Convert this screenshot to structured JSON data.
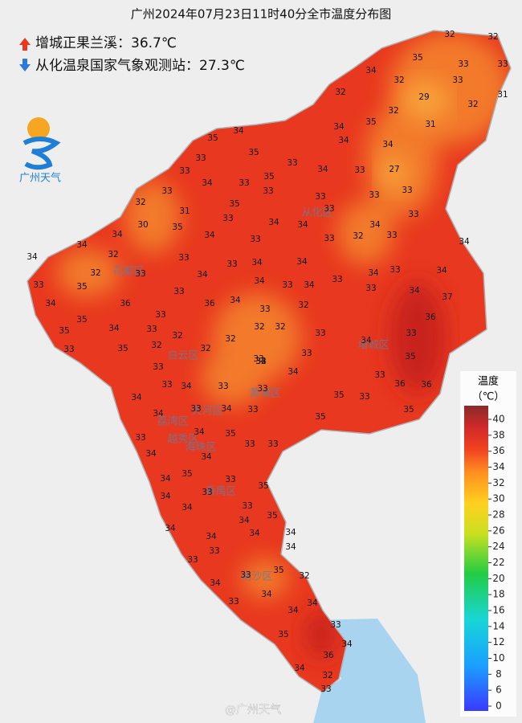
{
  "header": {
    "title": "广州2024年07月23日11时40分全市温度分布图",
    "max_line": "增城正果兰溪：36.7℃",
    "min_line": "从化温泉国家气象观测站：27.3℃"
  },
  "logo": "广州天气",
  "districts": [
    "花都区",
    "白云区",
    "从化区",
    "增城区",
    "黄埔区",
    "天河区",
    "荔湾区",
    "越秀区",
    "海珠区",
    "番禺区",
    "南沙区"
  ],
  "stations": [
    32,
    32,
    35,
    33,
    33,
    34,
    32,
    33,
    32,
    29,
    31,
    32,
    32,
    35,
    31,
    34,
    34,
    35,
    34,
    34,
    35,
    33,
    33,
    34,
    33,
    27,
    33,
    35,
    34,
    33,
    33,
    33,
    33,
    33,
    33,
    32,
    35,
    31,
    33,
    33,
    33,
    30,
    35,
    34,
    34,
    34,
    34,
    34,
    33,
    32,
    33,
    34,
    34,
    33,
    33,
    34,
    32,
    34,
    33,
    34,
    33,
    32,
    34,
    34,
    33,
    34,
    33,
    35,
    33,
    34,
    33,
    34,
    33,
    33,
    34,
    34,
    36,
    36,
    34,
    33,
    32,
    37,
    33,
    35,
    34,
    35,
    33,
    32,
    32,
    32,
    33,
    36,
    33,
    32,
    34,
    33,
    35,
    32,
    32,
    33,
    35,
    33,
    33,
    33,
    34,
    34,
    33,
    33,
    33,
    36,
    36,
    34,
    35,
    33,
    33,
    34,
    33,
    35,
    34,
    35,
    33,
    34,
    35,
    33,
    33,
    34,
    34,
    35,
    33,
    34,
    33,
    35,
    34,
    33,
    34,
    34,
    35,
    34,
    34,
    34,
    34,
    34,
    33,
    33,
    33,
    35,
    32,
    34,
    34,
    33,
    34,
    34,
    33,
    35,
    34,
    36,
    34,
    32,
    33,
    34,
    33,
    32
  ],
  "legend": {
    "title": "温度",
    "unit": "（℃）",
    "ticks": [
      0,
      6,
      8,
      10,
      12,
      14,
      16,
      18,
      20,
      22,
      24,
      26,
      28,
      30,
      32,
      34,
      36,
      38,
      40
    ]
  },
  "watermark": "@广州天气"
}
